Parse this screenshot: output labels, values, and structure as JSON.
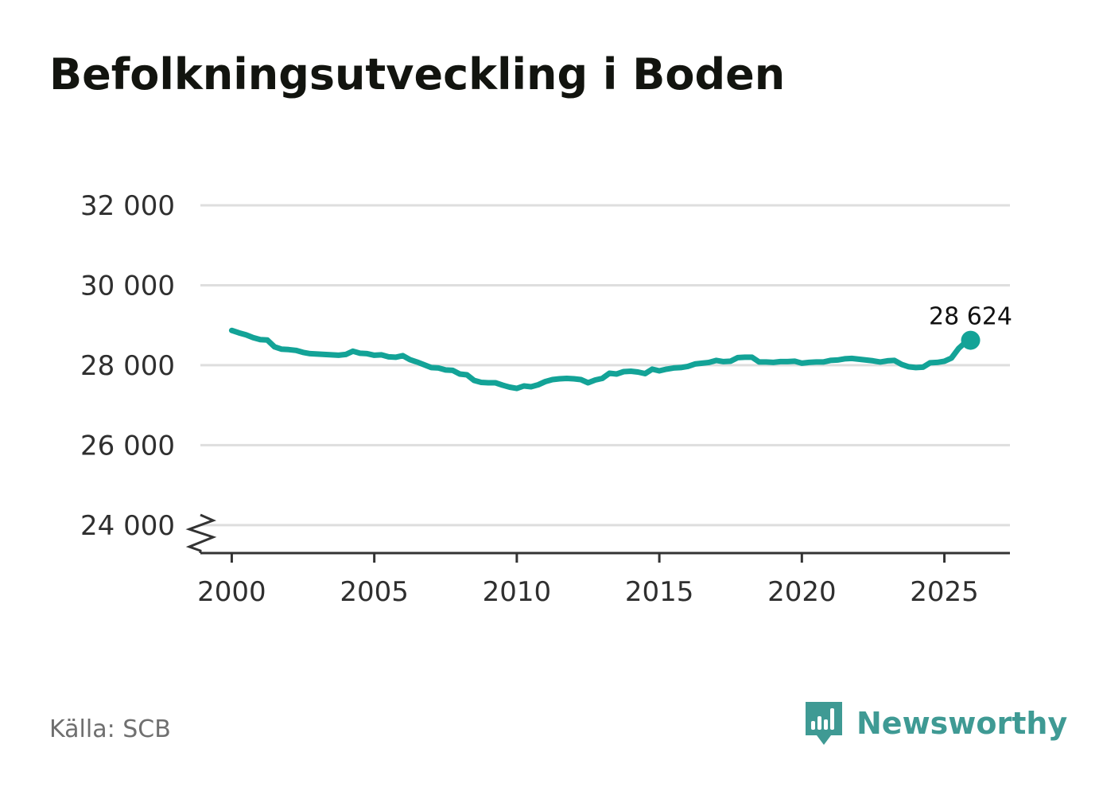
{
  "title": "Befolkningsutveckling i Boden",
  "source": "Källa: SCB",
  "brand": {
    "name": "Newsworthy",
    "logo_icon": "bar-chart-speech-bubble-icon",
    "color": "#3f9a94"
  },
  "colors": {
    "line": "#13a397",
    "grid": "#dedede",
    "axis": "#333333",
    "title": "#12140f"
  },
  "chart_data": {
    "type": "line",
    "title": "Befolkningsutveckling i Boden",
    "xlabel": "",
    "ylabel": "",
    "xlim": [
      1998.9,
      2027.3
    ],
    "ylim": [
      23300,
      32000
    ],
    "y_axis_break": true,
    "grid": "horizontal",
    "x_ticks": [
      {
        "value": 2000,
        "label": "2000"
      },
      {
        "value": 2005,
        "label": "2005"
      },
      {
        "value": 2010,
        "label": "2010"
      },
      {
        "value": 2015,
        "label": "2015"
      },
      {
        "value": 2020,
        "label": "2020"
      },
      {
        "value": 2025,
        "label": "2025"
      }
    ],
    "y_ticks": [
      {
        "value": 24000,
        "label": "24 000"
      },
      {
        "value": 26000,
        "label": "26 000"
      },
      {
        "value": 28000,
        "label": "28 000"
      },
      {
        "value": 30000,
        "label": "30 000"
      },
      {
        "value": 32000,
        "label": "32 000"
      }
    ],
    "series": [
      {
        "x": [
          2000.0,
          2000.25,
          2000.5,
          2000.75,
          2001.0,
          2001.25,
          2001.5,
          2001.75,
          2002.0,
          2002.25,
          2002.5,
          2002.75,
          2003.0,
          2003.25,
          2003.5,
          2003.75,
          2004.0,
          2004.25,
          2004.5,
          2004.75,
          2005.0,
          2005.25,
          2005.5,
          2005.75,
          2006.0,
          2006.25,
          2006.5,
          2006.75,
          2007.0,
          2007.25,
          2007.5,
          2007.75,
          2008.0,
          2008.25,
          2008.5,
          2008.75,
          2009.0,
          2009.25,
          2009.5,
          2009.75,
          2010.0,
          2010.25,
          2010.5,
          2010.75,
          2011.0,
          2011.25,
          2011.5,
          2011.75,
          2012.0,
          2012.25,
          2012.5,
          2012.75,
          2013.0,
          2013.25,
          2013.5,
          2013.75,
          2014.0,
          2014.25,
          2014.5,
          2014.75,
          2015.0,
          2015.25,
          2015.5,
          2015.75,
          2016.0,
          2016.25,
          2016.5,
          2016.75,
          2017.0,
          2017.25,
          2017.5,
          2017.75,
          2018.0,
          2018.25,
          2018.5,
          2018.75,
          2019.0,
          2019.25,
          2019.5,
          2019.75,
          2020.0,
          2020.25,
          2020.5,
          2020.75,
          2021.0,
          2021.25,
          2021.5,
          2021.75,
          2022.0,
          2022.25,
          2022.5,
          2022.75,
          2023.0,
          2023.25,
          2023.5,
          2023.75,
          2024.0,
          2024.25,
          2024.5,
          2024.75,
          2025.0,
          2025.25,
          2025.5,
          2025.75,
          2025.92
        ],
        "values": [
          28870,
          28810,
          28760,
          28690,
          28640,
          28630,
          28460,
          28400,
          28390,
          28370,
          28320,
          28290,
          28280,
          28270,
          28260,
          28250,
          28270,
          28350,
          28300,
          28290,
          28250,
          28260,
          28210,
          28200,
          28240,
          28140,
          28080,
          28010,
          27940,
          27930,
          27880,
          27870,
          27780,
          27760,
          27620,
          27570,
          27560,
          27560,
          27500,
          27450,
          27420,
          27480,
          27460,
          27510,
          27590,
          27640,
          27660,
          27670,
          27660,
          27640,
          27560,
          27630,
          27670,
          27800,
          27780,
          27840,
          27850,
          27830,
          27790,
          27900,
          27860,
          27900,
          27930,
          27940,
          27970,
          28030,
          28050,
          28070,
          28120,
          28090,
          28100,
          28190,
          28200,
          28200,
          28080,
          28080,
          28070,
          28090,
          28090,
          28100,
          28050,
          28070,
          28080,
          28080,
          28120,
          28130,
          28160,
          28170,
          28150,
          28130,
          28110,
          28080,
          28110,
          28120,
          28020,
          27960,
          27940,
          27950,
          28060,
          28070,
          28100,
          28180,
          28420,
          28580,
          28624
        ]
      }
    ],
    "highlight": {
      "x": 2025.92,
      "value": 28624,
      "label": "28 624"
    }
  }
}
